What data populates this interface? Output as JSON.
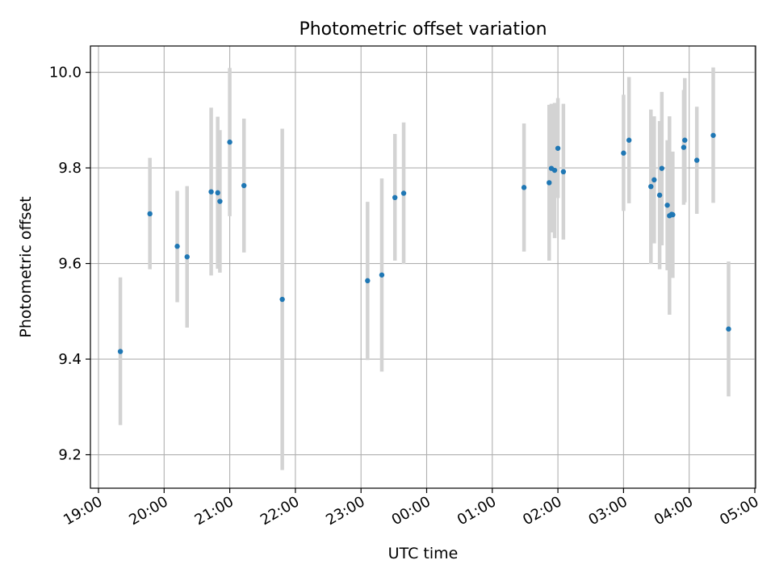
{
  "chart_data": {
    "type": "scatter",
    "title": "Photometric offset variation",
    "xlabel": "UTC time",
    "ylabel": "Photometric offset",
    "x_is_time": true,
    "xlim": [
      "19:00",
      "05:00"
    ],
    "ylim": [
      9.13,
      10.055
    ],
    "xticks": [
      "19:00",
      "20:00",
      "21:00",
      "22:00",
      "23:00",
      "00:00",
      "01:00",
      "02:00",
      "03:00",
      "04:00",
      "05:00"
    ],
    "yticks": [
      9.2,
      9.4,
      9.6,
      9.8,
      10.0
    ],
    "ytick_labels": [
      "9.2",
      "9.4",
      "9.6",
      "9.8",
      "10.0"
    ],
    "grid": true,
    "colors": {
      "points": "#1f77b4",
      "errorbars": "#d3d3d3",
      "grid": "#b0b0b0"
    },
    "points": [
      {
        "x": "19:20",
        "y": 9.416,
        "lo": 9.262,
        "hi": 9.571
      },
      {
        "x": "19:47",
        "y": 9.704,
        "lo": 9.588,
        "hi": 9.821
      },
      {
        "x": "20:12",
        "y": 9.636,
        "lo": 9.519,
        "hi": 9.752
      },
      {
        "x": "20:21",
        "y": 9.614,
        "lo": 9.466,
        "hi": 9.762
      },
      {
        "x": "20:43",
        "y": 9.75,
        "lo": 9.575,
        "hi": 9.926
      },
      {
        "x": "20:49",
        "y": 9.748,
        "lo": 9.589,
        "hi": 9.907
      },
      {
        "x": "20:51",
        "y": 9.73,
        "lo": 9.581,
        "hi": 9.879
      },
      {
        "x": "21:00",
        "y": 9.854,
        "lo": 9.699,
        "hi": 10.009
      },
      {
        "x": "21:13",
        "y": 9.763,
        "lo": 9.623,
        "hi": 9.903
      },
      {
        "x": "21:48",
        "y": 9.525,
        "lo": 9.168,
        "hi": 9.882
      },
      {
        "x": "23:06",
        "y": 9.564,
        "lo": 9.398,
        "hi": 9.729
      },
      {
        "x": "23:19",
        "y": 9.576,
        "lo": 9.374,
        "hi": 9.778
      },
      {
        "x": "23:31",
        "y": 9.738,
        "lo": 9.606,
        "hi": 9.871
      },
      {
        "x": "23:39",
        "y": 9.747,
        "lo": 9.599,
        "hi": 9.895
      },
      {
        "x": "01:29",
        "y": 9.759,
        "lo": 9.625,
        "hi": 9.893
      },
      {
        "x": "01:52",
        "y": 9.769,
        "lo": 9.606,
        "hi": 9.932
      },
      {
        "x": "01:54",
        "y": 9.799,
        "lo": 9.665,
        "hi": 9.934
      },
      {
        "x": "01:57",
        "y": 9.795,
        "lo": 9.653,
        "hi": 9.936
      },
      {
        "x": "02:00",
        "y": 9.841,
        "lo": 9.737,
        "hi": 9.946
      },
      {
        "x": "02:05",
        "y": 9.792,
        "lo": 9.65,
        "hi": 9.934
      },
      {
        "x": "03:00",
        "y": 9.831,
        "lo": 9.71,
        "hi": 9.953
      },
      {
        "x": "03:05",
        "y": 9.858,
        "lo": 9.726,
        "hi": 9.99
      },
      {
        "x": "03:25",
        "y": 9.761,
        "lo": 9.599,
        "hi": 9.922
      },
      {
        "x": "03:28",
        "y": 9.775,
        "lo": 9.642,
        "hi": 9.908
      },
      {
        "x": "03:33",
        "y": 9.743,
        "lo": 9.588,
        "hi": 9.898
      },
      {
        "x": "03:35",
        "y": 9.799,
        "lo": 9.638,
        "hi": 9.959
      },
      {
        "x": "03:40",
        "y": 9.722,
        "lo": 9.586,
        "hi": 9.858
      },
      {
        "x": "03:42",
        "y": 9.7,
        "lo": 9.493,
        "hi": 9.908
      },
      {
        "x": "03:44",
        "y": 9.703,
        "lo": 9.577,
        "hi": 9.829
      },
      {
        "x": "03:45",
        "y": 9.702,
        "lo": 9.57,
        "hi": 9.834
      },
      {
        "x": "03:55",
        "y": 9.843,
        "lo": 9.723,
        "hi": 9.963
      },
      {
        "x": "03:56",
        "y": 9.858,
        "lo": 9.728,
        "hi": 9.988
      },
      {
        "x": "04:07",
        "y": 9.816,
        "lo": 9.704,
        "hi": 9.928
      },
      {
        "x": "04:22",
        "y": 9.868,
        "lo": 9.727,
        "hi": 10.01
      },
      {
        "x": "04:36",
        "y": 9.463,
        "lo": 9.322,
        "hi": 9.604
      }
    ]
  }
}
